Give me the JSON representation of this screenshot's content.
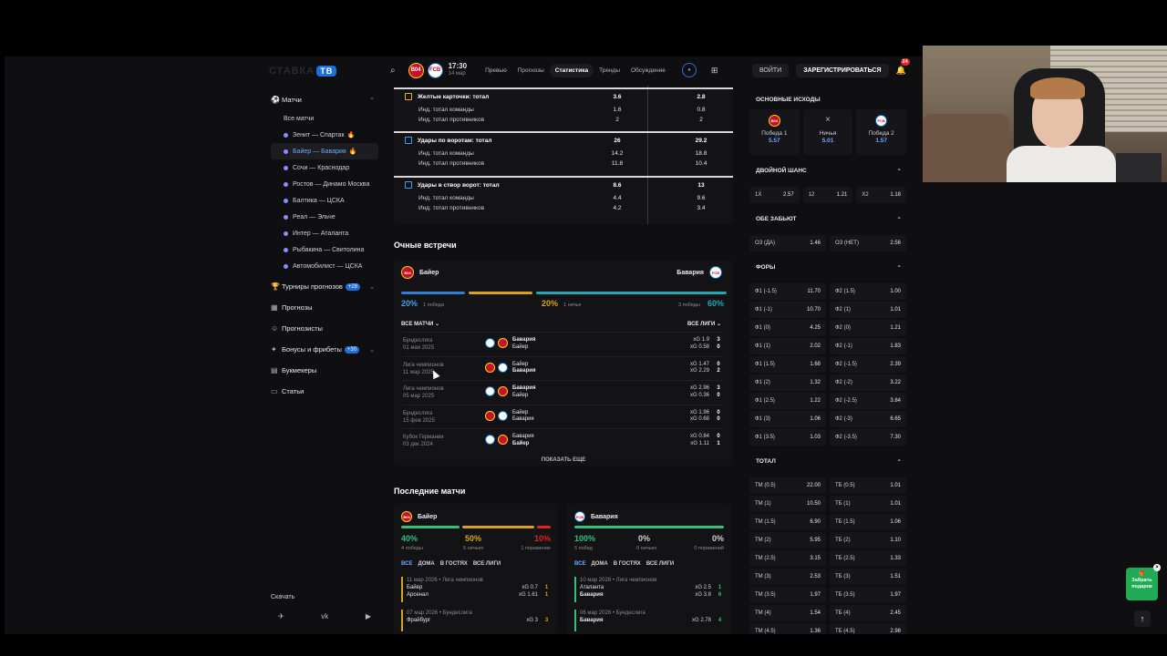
{
  "brand": {
    "logo": "СТАВКА",
    "tv": "ТВ"
  },
  "sidebar": {
    "matches_label": "Матчи",
    "all_matches": "Все матчи",
    "matches": [
      {
        "label": "Зенит — Спартак",
        "hot": true,
        "active": false
      },
      {
        "label": "Байер — Бавария",
        "hot": true,
        "active": true
      },
      {
        "label": "Сочи — Краснодар",
        "hot": false,
        "active": false
      },
      {
        "label": "Ростов — Динамо Москва",
        "hot": false,
        "active": false
      },
      {
        "label": "Балтика — ЦСКА",
        "hot": false,
        "active": false
      },
      {
        "label": "Реал — Эльче",
        "hot": false,
        "active": false
      },
      {
        "label": "Интер — Аталанта",
        "hot": false,
        "active": false
      },
      {
        "label": "Рыбакина — Свитолина",
        "hot": false,
        "active": false
      },
      {
        "label": "Автомобилист — ЦСКА",
        "hot": false,
        "active": false
      }
    ],
    "tournaments": "Турниры прогнозов",
    "tournaments_badge": "+28",
    "predictions": "Прогнозы",
    "forecasters": "Прогнозисты",
    "bonuses": "Бонусы и фрибеты",
    "bonuses_badge": "+30",
    "bookmakers": "Букмекеры",
    "articles": "Статьи",
    "download": "Скачать",
    "social": [
      "✈",
      "vk",
      "▶"
    ]
  },
  "topbar": {
    "home_abbr": "B04",
    "away_abbr": "FCB",
    "time": "17:30",
    "date": "14 мар",
    "tabs": [
      "Превью",
      "Прогнозы",
      "Статистика",
      "Тренды",
      "Обсуждение"
    ],
    "active_tab": 2,
    "login": "ВОЙТИ",
    "register": "ЗАРЕГИСТРИРОВАТЬСЯ",
    "notifications": "24"
  },
  "stats": [
    {
      "title": "Желтые карточки: тотал",
      "v1": "3.6",
      "v2": "2.8",
      "color": "#e0b020",
      "sub": [
        {
          "label": "Инд. тотал команды",
          "v1": "1.6",
          "v2": "0.8"
        },
        {
          "label": "Инд. тотал противников",
          "v1": "2",
          "v2": "2"
        }
      ]
    },
    {
      "title": "Удары по воротам: тотал",
      "v1": "26",
      "v2": "29.2",
      "color": "#4a9be8",
      "sub": [
        {
          "label": "Инд. тотал команды",
          "v1": "14.2",
          "v2": "18.8"
        },
        {
          "label": "Инд. тотал противников",
          "v1": "11.8",
          "v2": "10.4"
        }
      ]
    },
    {
      "title": "Удары в створ ворот: тотал",
      "v1": "8.6",
      "v2": "13",
      "color": "#4a9be8",
      "sub": [
        {
          "label": "Инд. тотал команды",
          "v1": "4.4",
          "v2": "9.6"
        },
        {
          "label": "Инд. тотал противников",
          "v1": "4.2",
          "v2": "3.4"
        }
      ]
    }
  ],
  "h2h": {
    "title": "Очные встречи",
    "home": "Байер",
    "away": "Бавария",
    "home_pct": "20%",
    "home_lbl": "1 победа",
    "draw_pct": "20%",
    "draw_lbl": "1 ничья",
    "away_pct": "60%",
    "away_lbl": "3 победы",
    "filter_left": "ВСЕ МАТЧИ",
    "filter_right": "ВСЕ ЛИГИ",
    "matches": [
      {
        "comp": "Бундеслига",
        "date": "01 мая 2025",
        "t1": "Бавария",
        "t2": "Байер",
        "bold": 1,
        "xg1": "xG 1.9",
        "xg2": "xG 0.58",
        "s1": "3",
        "s2": "0"
      },
      {
        "comp": "Лига чемпионов",
        "date": "11 мар 2025",
        "t1": "Байер",
        "t2": "Бавария",
        "bold": 2,
        "xg1": "xG 1.47",
        "xg2": "xG 2.29",
        "s1": "0",
        "s2": "2"
      },
      {
        "comp": "Лига чемпионов",
        "date": "05 мар 2025",
        "t1": "Бавария",
        "t2": "Байер",
        "bold": 1,
        "xg1": "xG 2.96",
        "xg2": "xG 0.36",
        "s1": "3",
        "s2": "0"
      },
      {
        "comp": "Бундеслига",
        "date": "15 фев 2025",
        "t1": "Байер",
        "t2": "Бавария",
        "bold": 0,
        "xg1": "xG 1.96",
        "xg2": "xG 0.68",
        "s1": "0",
        "s2": "0"
      },
      {
        "comp": "Кубок Германии",
        "date": "03 дек 2024",
        "t1": "Бавария",
        "t2": "Байер",
        "bold": 2,
        "xg1": "xG 0.84",
        "xg2": "xG 1.11",
        "s1": "0",
        "s2": "1"
      }
    ],
    "show_more": "ПОКАЗАТЬ ЕЩЕ"
  },
  "last": {
    "title": "Последние матчи",
    "filters": [
      "ВСЕ",
      "ДОМА",
      "В ГОСТЯХ",
      "ВСЕ ЛИГИ"
    ],
    "home": {
      "name": "Байер",
      "w": "40%",
      "d": "50%",
      "l": "10%",
      "wl": "4 победы",
      "dl": "5 ничьих",
      "ll": "1 поражение",
      "m1": {
        "meta": "11 мар 2026 • Лига чемпионов",
        "t1": "Байер",
        "t2": "Арсенал",
        "x1": "xG 0.7",
        "x2": "xG 1.61",
        "s1": "1",
        "s2": "1"
      },
      "m2": {
        "meta": "07 мар 2026 • Бундеслига",
        "t1": "Фрайбург",
        "x1": "xG 3",
        "s1": "3"
      }
    },
    "away": {
      "name": "Бавария",
      "w": "100%",
      "d": "0%",
      "l": "0%",
      "wl": "5 побед",
      "dl": "0 ничьих",
      "ll": "0 поражений",
      "m1": {
        "meta": "10 мар 2026 • Лига чемпионов",
        "t1": "Аталанта",
        "t2": "Бавария",
        "x1": "xG 2.5",
        "x2": "xG 3.8",
        "s1": "1",
        "s2": "6"
      },
      "m2": {
        "meta": "06 мар 2026 • Бундеслига",
        "t1": "Бавария",
        "x1": "xG 2.78",
        "s1": "4"
      }
    }
  },
  "odds": {
    "main_title": "ОСНОВНЫЕ ИСХОДЫ",
    "main": [
      {
        "k": "Победа 1",
        "o": "5.57"
      },
      {
        "k": "Ничья",
        "o": "5.01"
      },
      {
        "k": "Победа 2",
        "o": "1.57"
      }
    ],
    "dc_title": "ДВОЙНОЙ ШАНС",
    "dc": [
      [
        "1X",
        "2.57"
      ],
      [
        "12",
        "1.21"
      ],
      [
        "X2",
        "1.18"
      ]
    ],
    "btts_title": "ОБЕ ЗАБЬЮТ",
    "btts": [
      [
        "ОЗ (ДА)",
        "1.46"
      ],
      [
        "ОЗ (НЕТ)",
        "2.56"
      ]
    ],
    "hc_title": "ФОРЫ",
    "hc": [
      [
        "Ф1 (-1.5)",
        "11.70",
        "Ф2 (1.5)",
        "1.00"
      ],
      [
        "Ф1 (-1)",
        "10.70",
        "Ф2 (1)",
        "1.01"
      ],
      [
        "Ф1 (0)",
        "4.25",
        "Ф2 (0)",
        "1.21"
      ],
      [
        "Ф1 (1)",
        "2.02",
        "Ф2 (-1)",
        "1.83"
      ],
      [
        "Ф1 (1.5)",
        "1.68",
        "Ф2 (-1.5)",
        "2.39"
      ],
      [
        "Ф1 (2)",
        "1.32",
        "Ф2 (-2)",
        "3.22"
      ],
      [
        "Ф1 (2.5)",
        "1.22",
        "Ф2 (-2.5)",
        "3.84"
      ],
      [
        "Ф1 (3)",
        "1.06",
        "Ф2 (-3)",
        "6.65"
      ],
      [
        "Ф1 (3.5)",
        "1.03",
        "Ф2 (-3.5)",
        "7.30"
      ]
    ],
    "tot_title": "ТОТАЛ",
    "tot": [
      [
        "ТМ (0.5)",
        "22.00",
        "ТБ (0.5)",
        "1.01"
      ],
      [
        "ТМ (1)",
        "10.50",
        "ТБ (1)",
        "1.01"
      ],
      [
        "ТМ (1.5)",
        "6.90",
        "ТБ (1.5)",
        "1.06"
      ],
      [
        "ТМ (2)",
        "5.95",
        "ТБ (2)",
        "1.10"
      ],
      [
        "ТМ (2.5)",
        "3.15",
        "ТБ (2.5)",
        "1.33"
      ],
      [
        "ТМ (3)",
        "2.53",
        "ТБ (3)",
        "1.51"
      ],
      [
        "ТМ (3.5)",
        "1.97",
        "ТБ (3.5)",
        "1.97"
      ],
      [
        "ТМ (4)",
        "1.54",
        "ТБ (4)",
        "2.45"
      ],
      [
        "ТМ (4.5)",
        "1.36",
        "ТБ (4.5)",
        "2.98"
      ]
    ]
  },
  "gift": "Забрать подарок"
}
